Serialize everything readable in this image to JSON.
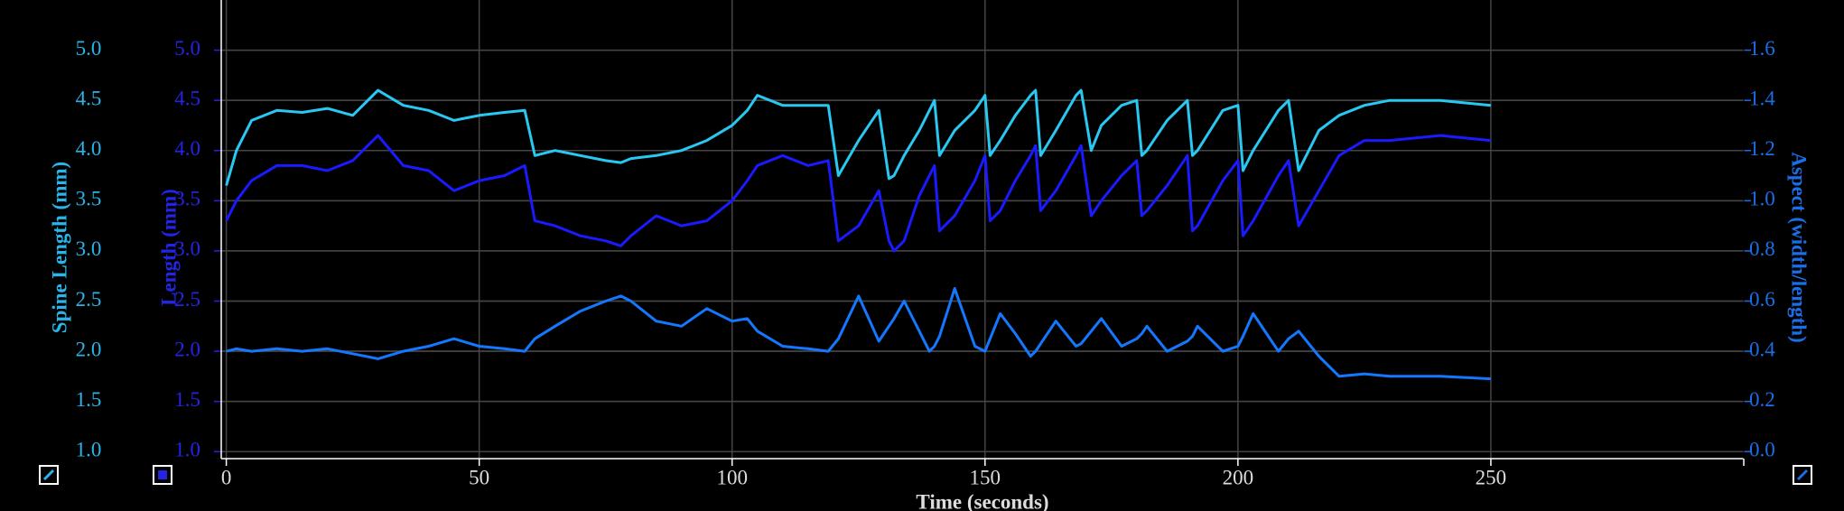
{
  "chart_data": {
    "type": "line",
    "x_label": "Time (seconds)",
    "xlim": [
      -1,
      300
    ],
    "xticks": [
      0,
      50,
      100,
      150,
      200,
      250
    ],
    "grid": true,
    "axes": [
      {
        "label": "Spine Length (mm)",
        "color": "#2ab4ea",
        "lim": [
          0.93,
          5.5
        ],
        "ticks": [
          {
            "value": 1,
            "label": "1.0"
          },
          1.5,
          {
            "value": 2,
            "label": "2.0"
          },
          2.5,
          {
            "value": 3,
            "label": "3.0"
          },
          3.5,
          {
            "value": 4,
            "label": "4.0"
          },
          4.5,
          {
            "value": 5,
            "label": "5.0"
          }
        ]
      },
      {
        "label": "Length (mm)",
        "color": "#2424e6",
        "lim": [
          0.93,
          5.5
        ],
        "ticks": [
          {
            "value": 1,
            "label": "1.0"
          },
          1.5,
          {
            "value": 2,
            "label": "2.0"
          },
          2.5,
          {
            "value": 3,
            "label": "3.0"
          },
          3.5,
          {
            "value": 4,
            "label": "4.0"
          },
          4.5,
          {
            "value": 5,
            "label": "5.0"
          }
        ]
      },
      {
        "label": "Aspect (width/length)",
        "color": "#1a6ee8",
        "lim": [
          -0.028,
          1.8
        ],
        "ticks": [
          {
            "value": 0,
            "label": "0.0"
          },
          0.2,
          0.4,
          0.6,
          0.8,
          {
            "value": 1,
            "label": "1.0"
          },
          1.2,
          1.4,
          1.6
        ]
      }
    ],
    "x": [
      0,
      2,
      5,
      10,
      15,
      20,
      25,
      30,
      35,
      40,
      45,
      50,
      55,
      59,
      61,
      65,
      70,
      75,
      78,
      80,
      85,
      90,
      95,
      100,
      103,
      105,
      110,
      115,
      119,
      121,
      125,
      129,
      131,
      132,
      134,
      137,
      139,
      140,
      141,
      144,
      148,
      150,
      151,
      153,
      156,
      159,
      160,
      161,
      164,
      168,
      169,
      171,
      173,
      177,
      180,
      181,
      182,
      186,
      190,
      191,
      192,
      197,
      200,
      201,
      203,
      208,
      210,
      212,
      216,
      220,
      225,
      230,
      240,
      250
    ],
    "series": [
      {
        "name": "Spine Length",
        "color": "#28c8f2",
        "axis": 0,
        "values": [
          3.65,
          4.0,
          4.3,
          4.4,
          4.38,
          4.42,
          4.35,
          4.6,
          4.45,
          4.4,
          4.3,
          4.35,
          4.38,
          4.4,
          3.95,
          4.0,
          3.95,
          3.9,
          3.88,
          3.92,
          3.95,
          4.0,
          4.1,
          4.25,
          4.4,
          4.55,
          4.45,
          4.45,
          4.45,
          3.75,
          4.1,
          4.4,
          3.72,
          3.75,
          3.95,
          4.2,
          4.4,
          4.5,
          3.95,
          4.2,
          4.4,
          4.55,
          3.95,
          4.1,
          4.35,
          4.55,
          4.6,
          3.95,
          4.2,
          4.55,
          4.6,
          4.0,
          4.25,
          4.45,
          4.5,
          3.95,
          4.0,
          4.3,
          4.5,
          3.95,
          4.0,
          4.4,
          4.45,
          3.8,
          4.0,
          4.4,
          4.5,
          3.8,
          4.2,
          4.35,
          4.45,
          4.5,
          4.5,
          4.45
        ]
      },
      {
        "name": "Length",
        "color": "#1a1aff",
        "axis": 1,
        "values": [
          3.3,
          3.5,
          3.7,
          3.85,
          3.85,
          3.8,
          3.9,
          4.15,
          3.85,
          3.8,
          3.6,
          3.7,
          3.75,
          3.85,
          3.3,
          3.25,
          3.15,
          3.1,
          3.05,
          3.15,
          3.35,
          3.25,
          3.3,
          3.5,
          3.7,
          3.85,
          3.95,
          3.85,
          3.9,
          3.1,
          3.25,
          3.6,
          3.1,
          3.0,
          3.1,
          3.55,
          3.75,
          3.85,
          3.2,
          3.35,
          3.7,
          3.95,
          3.3,
          3.4,
          3.7,
          3.95,
          4.05,
          3.4,
          3.6,
          3.95,
          4.05,
          3.35,
          3.5,
          3.75,
          3.9,
          3.35,
          3.4,
          3.65,
          3.95,
          3.2,
          3.25,
          3.7,
          3.9,
          3.15,
          3.3,
          3.75,
          3.9,
          3.25,
          3.6,
          3.95,
          4.1,
          4.1,
          4.15,
          4.1
        ]
      },
      {
        "name": "Aspect",
        "color": "#1478ff",
        "axis": 2,
        "values": [
          0.4,
          0.41,
          0.4,
          0.41,
          0.4,
          0.41,
          0.39,
          0.37,
          0.4,
          0.42,
          0.45,
          0.42,
          0.41,
          0.4,
          0.45,
          0.5,
          0.56,
          0.6,
          0.62,
          0.6,
          0.52,
          0.5,
          0.57,
          0.52,
          0.53,
          0.48,
          0.42,
          0.41,
          0.4,
          0.45,
          0.62,
          0.44,
          0.5,
          0.53,
          0.6,
          0.48,
          0.4,
          0.42,
          0.46,
          0.65,
          0.42,
          0.4,
          0.45,
          0.55,
          0.47,
          0.38,
          0.4,
          0.43,
          0.52,
          0.42,
          0.43,
          0.48,
          0.53,
          0.42,
          0.45,
          0.47,
          0.5,
          0.4,
          0.44,
          0.46,
          0.5,
          0.4,
          0.42,
          0.46,
          0.55,
          0.4,
          0.45,
          0.48,
          0.38,
          0.3,
          0.31,
          0.3,
          0.3,
          0.29
        ]
      }
    ]
  }
}
